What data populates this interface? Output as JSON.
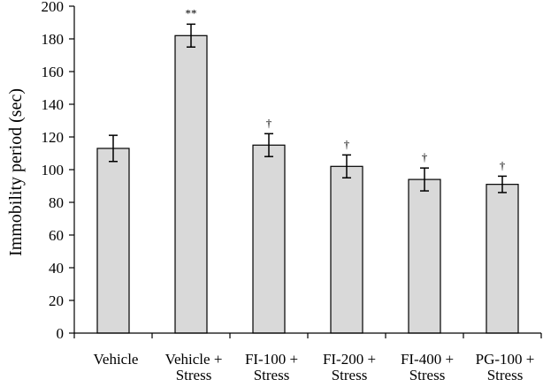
{
  "chart_data": {
    "type": "bar",
    "ylabel": "Immobility period (sec)",
    "ylim": [
      0,
      200
    ],
    "yticks": [
      0,
      20,
      40,
      60,
      80,
      100,
      120,
      140,
      160,
      180,
      200
    ],
    "categories": [
      [
        "Vehicle"
      ],
      [
        "Vehicle +",
        "Stress"
      ],
      [
        "FI-100 +",
        "Stress"
      ],
      [
        "FI-200 +",
        "Stress"
      ],
      [
        "FI-400 +",
        "Stress"
      ],
      [
        "PG-100 +",
        "Stress"
      ]
    ],
    "values": [
      113,
      182,
      115,
      102,
      94,
      91
    ],
    "errors": [
      8,
      7,
      7,
      7,
      7,
      5
    ],
    "significance": [
      "",
      "**",
      "†",
      "†",
      "†",
      "†"
    ],
    "bar_color": "#d9d9d9",
    "grid": false
  }
}
